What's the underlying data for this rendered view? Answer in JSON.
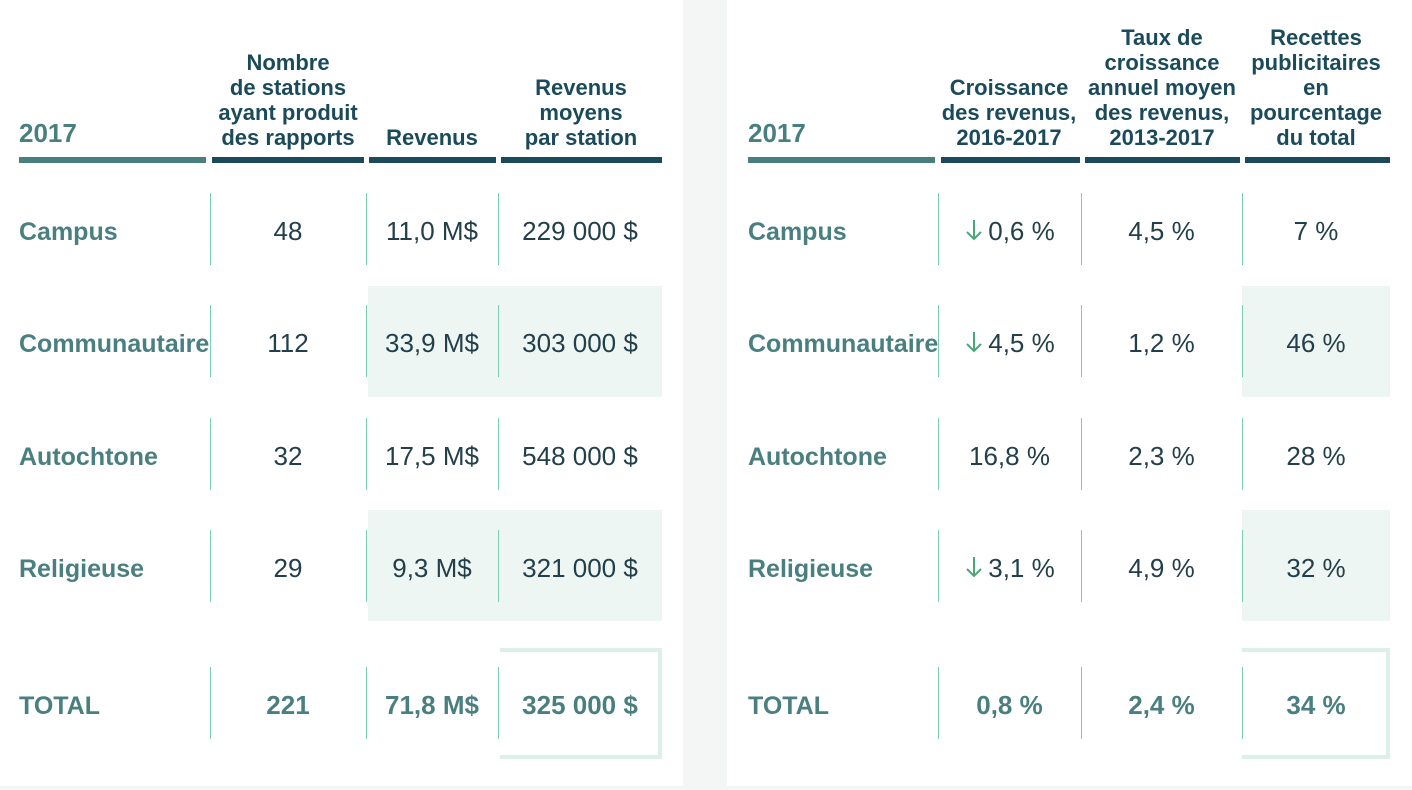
{
  "left_table": {
    "year": "2017",
    "headers": [
      "Nombre\nde stations\nayant produit\ndes rapports",
      "Revenus",
      "Revenus\nmoyens\npar station"
    ],
    "rows": [
      {
        "label": "Campus",
        "values": [
          "48",
          "11,0 M$",
          "229 000 $"
        ]
      },
      {
        "label": "Communautaire",
        "values": [
          "112",
          "33,9 M$",
          "303 000 $"
        ]
      },
      {
        "label": "Autochtone",
        "values": [
          "32",
          "17,5 M$",
          "548 000 $"
        ]
      },
      {
        "label": "Religieuse",
        "values": [
          "29",
          "9,3 M$",
          "321 000 $"
        ]
      }
    ],
    "total": {
      "label": "TOTAL",
      "values": [
        "221",
        "71,8 M$",
        "325 000 $"
      ]
    }
  },
  "right_table": {
    "year": "2017",
    "headers": [
      "Croissance\ndes revenus,\n2016-2017",
      "Taux de\ncroissance\nannuel moyen\ndes revenus,\n2013-2017",
      "Recettes\npublicitaires\nen\npourcentage\ndu total"
    ],
    "rows": [
      {
        "label": "Campus",
        "values": [
          "0,6 %",
          "4,5 %",
          "7 %"
        ],
        "decline": true
      },
      {
        "label": "Communautaire",
        "values": [
          "4,5 %",
          "1,2 %",
          "46 %"
        ],
        "decline": true
      },
      {
        "label": "Autochtone",
        "values": [
          "16,8 %",
          "2,3 %",
          "28 %"
        ],
        "decline": false
      },
      {
        "label": "Religieuse",
        "values": [
          "3,1 %",
          "4,9 %",
          "32 %"
        ],
        "decline": true
      }
    ],
    "total": {
      "label": "TOTAL",
      "values": [
        "0,8 %",
        "2,4 %",
        "34 %"
      ]
    }
  },
  "colors": {
    "header_text": "#1b4a5a",
    "row_label": "#4a7f80",
    "body_text": "#223f4a",
    "band_fill": "#edf6f2",
    "separator": "#7ccfae",
    "down_arrow": "#4aa878"
  },
  "icons": {
    "decline": "arrow-down-icon"
  }
}
